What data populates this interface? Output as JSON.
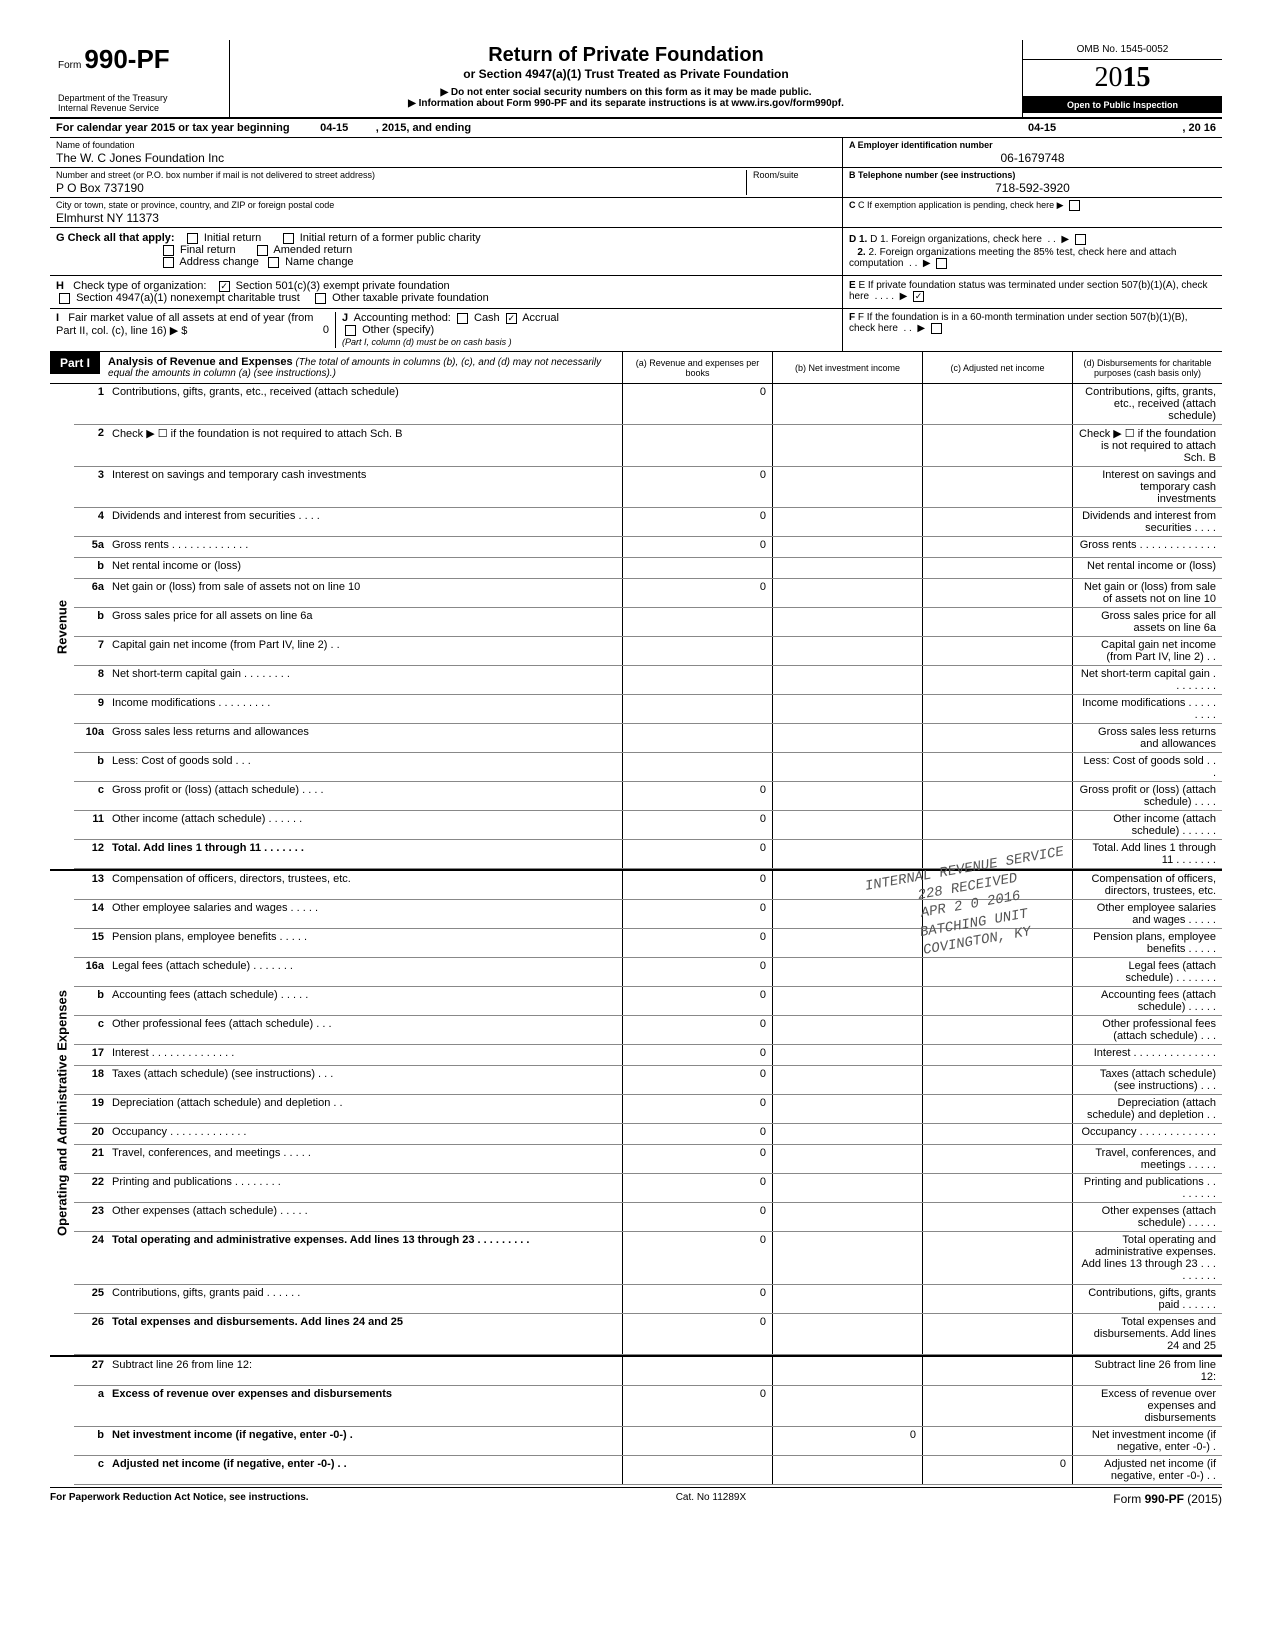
{
  "header": {
    "form_prefix": "Form",
    "form_number": "990-PF",
    "dept1": "Department of the Treasury",
    "dept2": "Internal Revenue Service",
    "title": "Return of Private Foundation",
    "subtitle": "or Section 4947(a)(1) Trust Treated as Private Foundation",
    "warn": "▶ Do not enter social security numbers on this form as it may be made public.",
    "info": "▶ Information about Form 990-PF and its separate instructions is at www.irs.gov/form990pf.",
    "omb": "OMB No. 1545-0052",
    "year_prefix": "2",
    "year_mid": "0",
    "year_bold": "15",
    "inspect": "Open to Public Inspection"
  },
  "cal": {
    "text": "For calendar year 2015 or tax year beginning",
    "begin": "04-15",
    "mid": ", 2015, and ending",
    "end": "04-15",
    "tail": ", 20      16"
  },
  "id": {
    "name_label": "Name of foundation",
    "name": "The W. C Jones Foundation Inc",
    "addr_label": "Number and street (or P.O. box number if mail is not delivered to street address)",
    "addr": "P O Box 737190",
    "room_label": "Room/suite",
    "city_label": "City or town, state or province, country, and ZIP or foreign postal code",
    "city": "Elmhurst NY 11373",
    "a_label": "A  Employer identification number",
    "a_val": "06-1679748",
    "b_label": "B  Telephone number (see instructions)",
    "b_val": "718-592-3920",
    "c_label": "C  If exemption application is pending, check here ▶"
  },
  "g": {
    "label": "G  Check all that apply:",
    "opts": [
      "Initial return",
      "Initial return of a former public charity",
      "Final return",
      "Amended return",
      "Address change",
      "Name change"
    ],
    "d1": "D  1. Foreign organizations, check here",
    "d2": "2. Foreign organizations meeting the 85% test, check here and attach computation",
    "e": "E  If private foundation status was terminated under section 507(b)(1)(A), check here",
    "e_checked": "✓"
  },
  "h": {
    "label": "H",
    "text": "Check type of organization:",
    "opt1": "Section 501(c)(3) exempt private foundation",
    "opt1_checked": "✓",
    "line2": "Section 4947(a)(1) nonexempt charitable trust",
    "line2b": "Other taxable private foundation"
  },
  "i": {
    "label": "I",
    "text": "Fair market value of all assets at end of year  (from Part II, col. (c), line 16) ▶ $",
    "zero": "0",
    "j_label": "J",
    "j_text": "Accounting method:",
    "j_cash": "Cash",
    "j_accrual": "Accrual",
    "j_accrual_checked": "✓",
    "j_other": "Other (specify)",
    "j_note": "(Part I, column (d) must be on cash basis )",
    "f1": "F  If the foundation is in a 60-month termination under section 507(b)(1)(B), check here"
  },
  "part1": {
    "label": "Part I",
    "title": "Analysis of Revenue and Expenses",
    "sub": "(The total of amounts in columns (b), (c), and (d) may not necessarily equal the amounts in column (a) (see instructions).)",
    "cols": {
      "a": "(a) Revenue and expenses per books",
      "b": "(b) Net investment income",
      "c": "(c) Adjusted net income",
      "d": "(d) Disbursements for charitable purposes (cash basis only)"
    }
  },
  "sections": {
    "revenue": "Revenue",
    "opexp": "Operating and Administrative Expenses"
  },
  "lines": [
    {
      "n": "1",
      "d": "Contributions, gifts, grants, etc., received (attach schedule)",
      "a": "0"
    },
    {
      "n": "2",
      "d": "Check ▶ ☐ if the foundation is not required to attach Sch. B"
    },
    {
      "n": "3",
      "d": "Interest on savings and temporary cash investments",
      "a": "0"
    },
    {
      "n": "4",
      "d": "Dividends and interest from securities  .   .   .   .",
      "a": "0"
    },
    {
      "n": "5a",
      "d": "Gross rents .   .   .   .   .   .   .   .   .   .   .   .   .",
      "a": "0"
    },
    {
      "n": "b",
      "d": "Net rental income or (loss)"
    },
    {
      "n": "6a",
      "d": "Net gain or (loss) from sale of assets not on line 10",
      "a": "0"
    },
    {
      "n": "b",
      "d": "Gross sales price for all assets on line 6a"
    },
    {
      "n": "7",
      "d": "Capital gain net income (from Part IV, line 2)  .   ."
    },
    {
      "n": "8",
      "d": "Net short-term capital gain .   .   .   .   .   .   .   ."
    },
    {
      "n": "9",
      "d": "Income modifications     .   .   .   .   .   .   .   .   ."
    },
    {
      "n": "10a",
      "d": "Gross sales less returns and allowances"
    },
    {
      "n": "b",
      "d": "Less: Cost of goods sold    .   .   ."
    },
    {
      "n": "c",
      "d": "Gross profit or (loss) (attach schedule) .   .   .   .",
      "a": "0"
    },
    {
      "n": "11",
      "d": "Other income (attach schedule)   .   .   .   .   .   .",
      "a": "0"
    },
    {
      "n": "12",
      "d": "Total. Add lines 1 through 11  .   .   .   .   .   .   .",
      "a": "0",
      "bold": true
    }
  ],
  "explines": [
    {
      "n": "13",
      "d": "Compensation of officers, directors, trustees, etc.",
      "a": "0"
    },
    {
      "n": "14",
      "d": "Other employee salaries and wages .   .   .   .   .",
      "a": "0"
    },
    {
      "n": "15",
      "d": "Pension plans, employee benefits   .   .   .   .   .",
      "a": "0"
    },
    {
      "n": "16a",
      "d": "Legal fees (attach schedule)    .   .   .   .   .   .   .",
      "a": "0"
    },
    {
      "n": "b",
      "d": "Accounting fees (attach schedule)    .   .   .   .   .",
      "a": "0"
    },
    {
      "n": "c",
      "d": "Other professional fees (attach schedule)  .   .   .",
      "a": "0"
    },
    {
      "n": "17",
      "d": "Interest   .   .   .   .   .   .   .   .   .   .   .   .   .   .",
      "a": "0"
    },
    {
      "n": "18",
      "d": "Taxes (attach schedule) (see instructions)   .   .   .",
      "a": "0"
    },
    {
      "n": "19",
      "d": "Depreciation (attach schedule) and depletion .   .",
      "a": "0"
    },
    {
      "n": "20",
      "d": "Occupancy .   .   .   .   .   .   .   .   .   .   .   .   .",
      "a": "0"
    },
    {
      "n": "21",
      "d": "Travel, conferences, and meetings   .   .   .   .   .",
      "a": "0"
    },
    {
      "n": "22",
      "d": "Printing and publications    .   .   .   .   .   .   .   .",
      "a": "0"
    },
    {
      "n": "23",
      "d": "Other expenses (attach schedule)    .   .   .   .   .",
      "a": "0"
    },
    {
      "n": "24",
      "d": "Total operating and administrative expenses. Add lines 13 through 23 .   .   .   .   .   .   .   .   .",
      "a": "0",
      "bold": true
    },
    {
      "n": "25",
      "d": "Contributions, gifts, grants paid   .   .   .   .   .   .",
      "a": "0"
    },
    {
      "n": "26",
      "d": "Total expenses and disbursements. Add lines 24 and 25",
      "a": "0",
      "bold": true
    }
  ],
  "netlines": [
    {
      "n": "27",
      "d": "Subtract line 26 from line 12:"
    },
    {
      "n": "a",
      "d": "Excess of revenue over expenses and disbursements",
      "a": "0",
      "bold": true
    },
    {
      "n": "b",
      "d": "Net investment income (if negative, enter -0-)   .",
      "b": "0",
      "bold": true
    },
    {
      "n": "c",
      "d": "Adjusted net income (if negative, enter -0-) .   .",
      "c": "0",
      "bold": true
    }
  ],
  "stamp": {
    "l1": "INTERNAL REVENUE SERVICE",
    "l2": "228 RECEIVED",
    "l3": "APR 2 0 2016",
    "l4": "BATCHING UNIT",
    "l5": "COVINGTON, KY"
  },
  "footer": {
    "left": "For Paperwork Reduction Act Notice, see instructions.",
    "mid": "Cat. No 11289X",
    "right": "Form 990-PF (2015)"
  }
}
